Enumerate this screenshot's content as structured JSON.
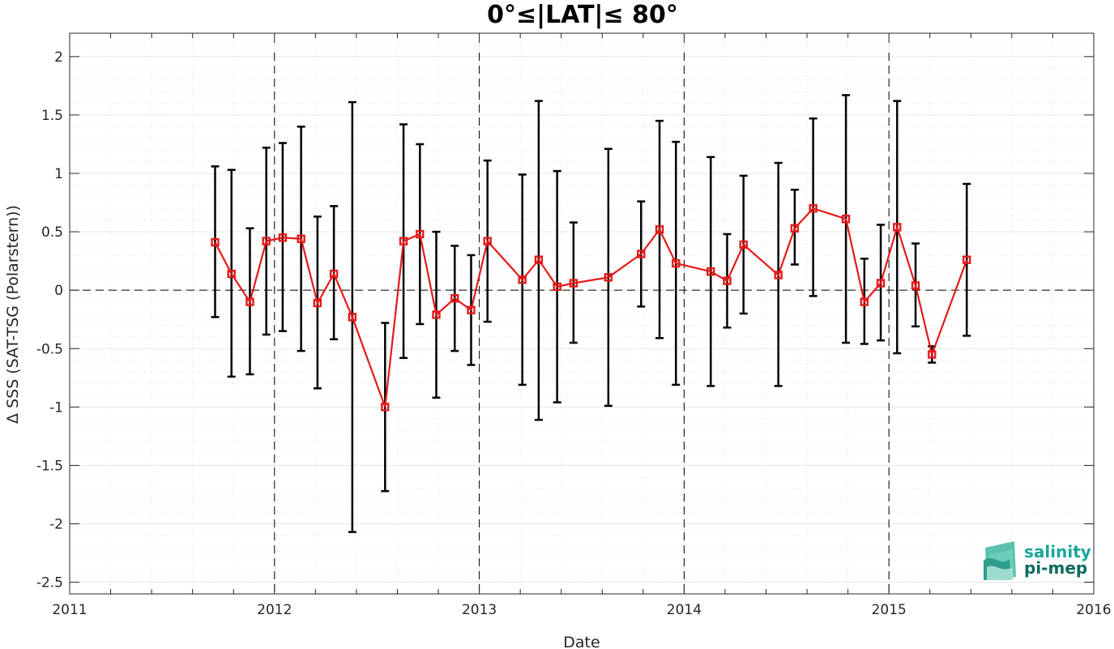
{
  "chart_data": {
    "type": "line",
    "title": "0°≤|LAT|≤ 80°",
    "xlabel": "Date",
    "ylabel": "Δ SSS (SAT-TSG (Polarstern))",
    "xlim": [
      2011,
      2016
    ],
    "ylim": [
      -2.6,
      2.2
    ],
    "x_ticks": [
      "2011",
      "2012",
      "2013",
      "2014",
      "2015",
      "2016"
    ],
    "y_ticks": [
      "2",
      "1.5",
      "1",
      "0.5",
      "0",
      "-0.5",
      "-1",
      "-1.5",
      "-2",
      "-2.5"
    ],
    "grid": true,
    "series": [
      {
        "color": "#e41a1a",
        "errorbar_color": "#000000",
        "points": [
          {
            "x": 2011.71,
            "y": 0.41,
            "lo": -0.23,
            "hi": 1.06
          },
          {
            "x": 2011.79,
            "y": 0.14,
            "lo": -0.74,
            "hi": 1.03
          },
          {
            "x": 2011.88,
            "y": -0.1,
            "lo": -0.72,
            "hi": 0.53
          },
          {
            "x": 2011.96,
            "y": 0.42,
            "lo": -0.38,
            "hi": 1.22
          },
          {
            "x": 2012.04,
            "y": 0.45,
            "lo": -0.35,
            "hi": 1.26
          },
          {
            "x": 2012.13,
            "y": 0.44,
            "lo": -0.52,
            "hi": 1.4
          },
          {
            "x": 2012.21,
            "y": -0.11,
            "lo": -0.84,
            "hi": 0.63
          },
          {
            "x": 2012.29,
            "y": 0.14,
            "lo": -0.42,
            "hi": 0.72
          },
          {
            "x": 2012.38,
            "y": -0.23,
            "lo": -2.07,
            "hi": 1.61
          },
          {
            "x": 2012.54,
            "y": -1.0,
            "lo": -1.72,
            "hi": -0.28
          },
          {
            "x": 2012.63,
            "y": 0.42,
            "lo": -0.58,
            "hi": 1.42
          },
          {
            "x": 2012.71,
            "y": 0.48,
            "lo": -0.29,
            "hi": 1.25
          },
          {
            "x": 2012.79,
            "y": -0.21,
            "lo": -0.92,
            "hi": 0.5
          },
          {
            "x": 2012.88,
            "y": -0.07,
            "lo": -0.52,
            "hi": 0.38
          },
          {
            "x": 2012.96,
            "y": -0.17,
            "lo": -0.64,
            "hi": 0.3
          },
          {
            "x": 2013.04,
            "y": 0.42,
            "lo": -0.27,
            "hi": 1.11
          },
          {
            "x": 2013.21,
            "y": 0.09,
            "lo": -0.81,
            "hi": 0.99
          },
          {
            "x": 2013.29,
            "y": 0.26,
            "lo": -1.11,
            "hi": 1.62
          },
          {
            "x": 2013.38,
            "y": 0.03,
            "lo": -0.96,
            "hi": 1.02
          },
          {
            "x": 2013.46,
            "y": 0.06,
            "lo": -0.45,
            "hi": 0.58
          },
          {
            "x": 2013.63,
            "y": 0.11,
            "lo": -0.99,
            "hi": 1.21
          },
          {
            "x": 2013.79,
            "y": 0.31,
            "lo": -0.14,
            "hi": 0.76
          },
          {
            "x": 2013.88,
            "y": 0.52,
            "lo": -0.41,
            "hi": 1.45
          },
          {
            "x": 2013.96,
            "y": 0.23,
            "lo": -0.81,
            "hi": 1.27
          },
          {
            "x": 2014.13,
            "y": 0.16,
            "lo": -0.82,
            "hi": 1.14
          },
          {
            "x": 2014.21,
            "y": 0.08,
            "lo": -0.32,
            "hi": 0.48
          },
          {
            "x": 2014.29,
            "y": 0.39,
            "lo": -0.2,
            "hi": 0.98
          },
          {
            "x": 2014.46,
            "y": 0.13,
            "lo": -0.82,
            "hi": 1.09
          },
          {
            "x": 2014.54,
            "y": 0.53,
            "lo": 0.22,
            "hi": 0.86
          },
          {
            "x": 2014.63,
            "y": 0.7,
            "lo": -0.05,
            "hi": 1.47
          },
          {
            "x": 2014.79,
            "y": 0.61,
            "lo": -0.45,
            "hi": 1.67
          },
          {
            "x": 2014.88,
            "y": -0.1,
            "lo": -0.46,
            "hi": 0.27
          },
          {
            "x": 2014.96,
            "y": 0.06,
            "lo": -0.43,
            "hi": 0.56
          },
          {
            "x": 2015.04,
            "y": 0.54,
            "lo": -0.54,
            "hi": 1.62
          },
          {
            "x": 2015.13,
            "y": 0.04,
            "lo": -0.31,
            "hi": 0.4
          },
          {
            "x": 2015.21,
            "y": -0.55,
            "lo": -0.62,
            "hi": -0.48
          },
          {
            "x": 2015.38,
            "y": 0.26,
            "lo": -0.39,
            "hi": 0.91
          }
        ]
      }
    ]
  },
  "logo": {
    "line1": "salinity",
    "line2": "pi-mep",
    "color1": "#1aa59a",
    "color2": "#0f6b5f"
  }
}
